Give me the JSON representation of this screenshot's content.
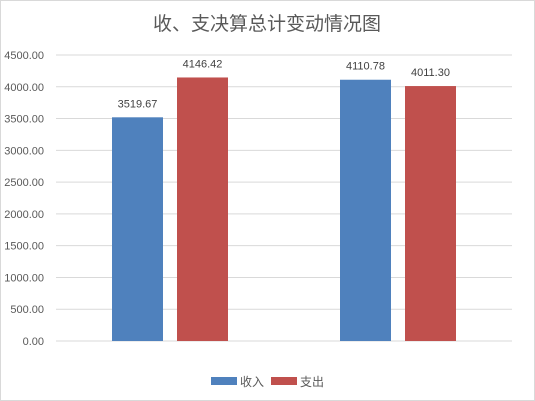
{
  "chart_data": {
    "type": "bar",
    "title": "收、支决算总计变动情况图",
    "categories": [
      "",
      ""
    ],
    "series": [
      {
        "name": "收入",
        "values": [
          3519.67,
          4110.78
        ],
        "labels": [
          "3519.67",
          "4110.78"
        ],
        "color": "#4f81bd"
      },
      {
        "name": "支出",
        "values": [
          4146.42,
          4011.3
        ],
        "labels": [
          "4146.42",
          "4011.30"
        ],
        "color": "#c0504d"
      }
    ],
    "ylim": [
      0,
      4500
    ],
    "yticks": [
      "0.00",
      "500.00",
      "1000.00",
      "1500.00",
      "2000.00",
      "2500.00",
      "3000.00",
      "3500.00",
      "4000.00",
      "4500.00"
    ],
    "grid": true,
    "legend_position": "bottom"
  }
}
